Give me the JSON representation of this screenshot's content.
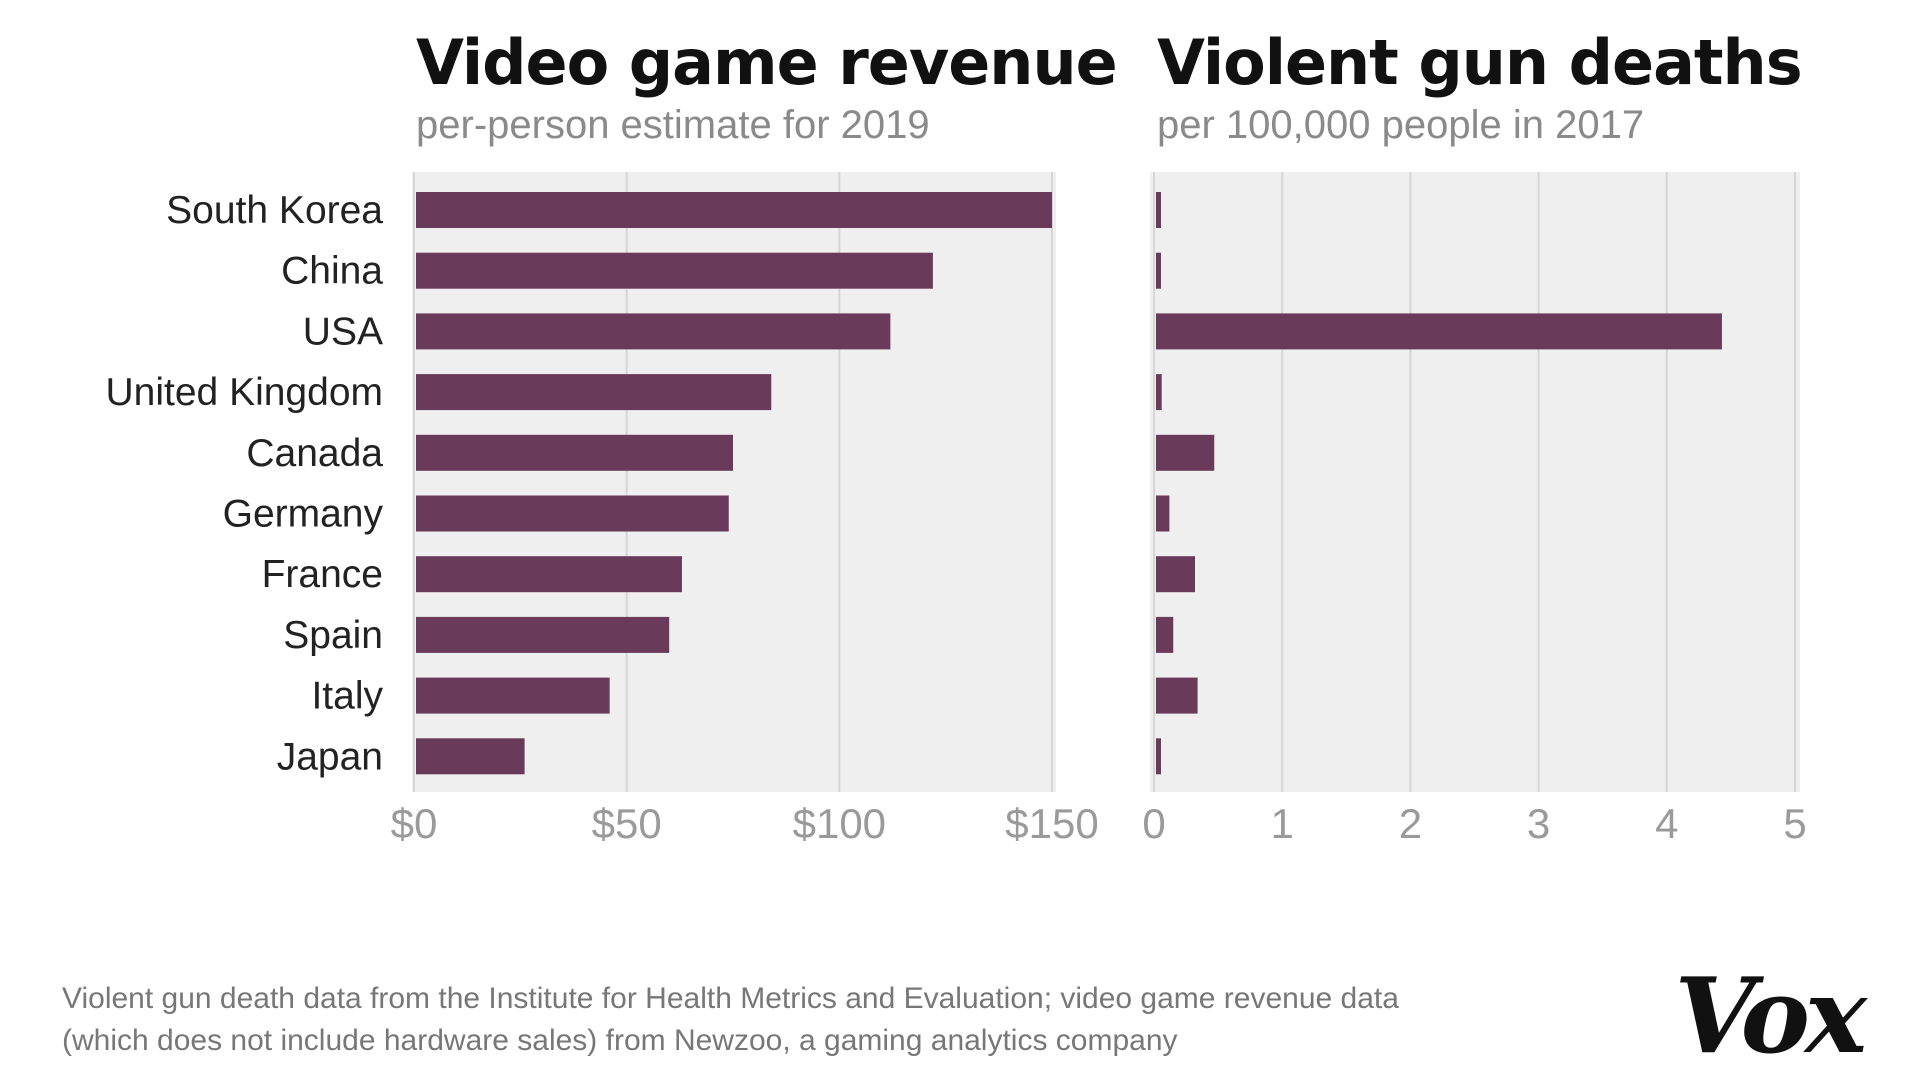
{
  "chart_data": [
    {
      "type": "bar",
      "orientation": "horizontal",
      "title": "Video game revenue",
      "subtitle": "per-person estimate for 2019",
      "categories": [
        "South Korea",
        "China",
        "USA",
        "United Kingdom",
        "Canada",
        "Germany",
        "France",
        "Spain",
        "Italy",
        "Japan"
      ],
      "values": [
        150,
        122,
        112,
        84,
        75,
        74,
        63,
        60,
        46,
        26
      ],
      "xlim": [
        0,
        150
      ],
      "ticks": [
        0,
        50,
        100,
        150
      ],
      "tick_labels": [
        "$0",
        "$50",
        "$100",
        "$150"
      ],
      "xlabel": "",
      "ylabel": "",
      "grid": true,
      "bar_color": "#6a3a5a"
    },
    {
      "type": "bar",
      "orientation": "horizontal",
      "title": "Violent gun deaths",
      "subtitle": "per 100,000 people in 2017",
      "categories": [
        "South Korea",
        "China",
        "USA",
        "United Kingdom",
        "Canada",
        "Germany",
        "France",
        "Spain",
        "Italy",
        "Japan"
      ],
      "values": [
        0.04,
        0.03,
        4.43,
        0.06,
        0.47,
        0.12,
        0.32,
        0.15,
        0.34,
        0.03
      ],
      "xlim": [
        0,
        5
      ],
      "ticks": [
        0,
        1,
        2,
        3,
        4,
        5
      ],
      "tick_labels": [
        "0",
        "1",
        "2",
        "3",
        "4",
        "5"
      ],
      "xlabel": "",
      "ylabel": "",
      "grid": true,
      "bar_color": "#6a3a5a"
    }
  ],
  "footnote": {
    "line1": "Violent gun death data from the Institute for Health Metrics and Evaluation; video game revenue data",
    "line2": "(which does not include hardware sales) from Newzoo, a gaming analytics company"
  },
  "brand": {
    "logo_text": "Vox"
  },
  "colors": {
    "panel_background": "#efefef",
    "gridline": "#d6d6d6",
    "bar": "#6a3a5a"
  }
}
